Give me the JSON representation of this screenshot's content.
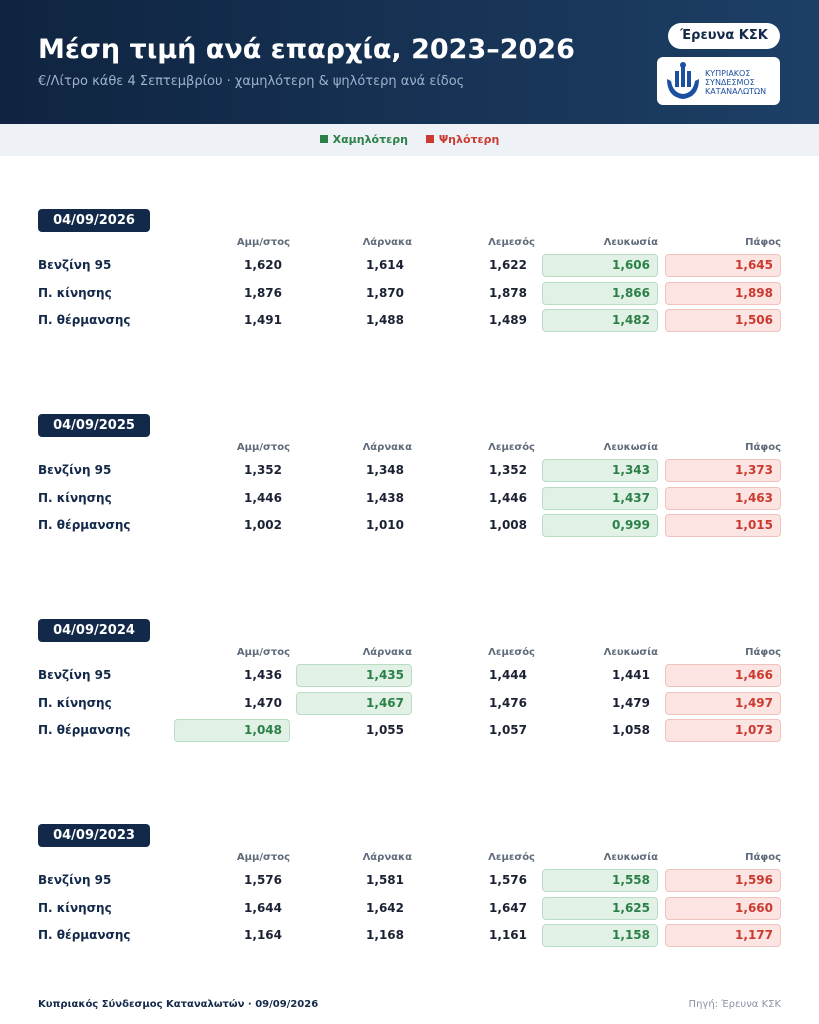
{
  "header": {
    "title": "Μέση τιμή ανά επαρχία, 2023–2026",
    "subtitle": "€/Λίτρο κάθε 4 Σεπτεμβρίου · χαμηλότερη & ψηλότερη ανά είδος",
    "badge": "Έρευνα ΚΣΚ",
    "logo_lines": [
      "ΚΥΠΡΙΑΚΟΣ",
      "ΣΥΝΔΕΣΜΟΣ",
      "ΚΑΤΑΝΑΛΩΤΩΝ"
    ]
  },
  "legend": {
    "low": "Χαμηλότερη",
    "high": "Ψηλότερη"
  },
  "columns": [
    "Αμμ/στος",
    "Λάρνακα",
    "Λεμεσός",
    "Λευκωσία",
    "Πάφος"
  ],
  "sections": [
    {
      "date": "04/09/2026",
      "rows": [
        {
          "label": "Βενζίνη 95",
          "values": [
            "1,620",
            "1,614",
            "1,622",
            "1,606",
            "1,645"
          ],
          "lowest": 3,
          "highest": 4
        },
        {
          "label": "Π. κίνησης",
          "values": [
            "1,876",
            "1,870",
            "1,878",
            "1,866",
            "1,898"
          ],
          "lowest": 3,
          "highest": 4
        },
        {
          "label": "Π. θέρμανσης",
          "values": [
            "1,491",
            "1,488",
            "1,489",
            "1,482",
            "1,506"
          ],
          "lowest": 3,
          "highest": 4
        }
      ]
    },
    {
      "date": "04/09/2025",
      "rows": [
        {
          "label": "Βενζίνη 95",
          "values": [
            "1,352",
            "1,348",
            "1,352",
            "1,343",
            "1,373"
          ],
          "lowest": 3,
          "highest": 4
        },
        {
          "label": "Π. κίνησης",
          "values": [
            "1,446",
            "1,438",
            "1,446",
            "1,437",
            "1,463"
          ],
          "lowest": 3,
          "highest": 4
        },
        {
          "label": "Π. θέρμανσης",
          "values": [
            "1,002",
            "1,010",
            "1,008",
            "0,999",
            "1,015"
          ],
          "lowest": 3,
          "highest": 4
        }
      ]
    },
    {
      "date": "04/09/2024",
      "rows": [
        {
          "label": "Βενζίνη 95",
          "values": [
            "1,436",
            "1,435",
            "1,444",
            "1,441",
            "1,466"
          ],
          "lowest": 1,
          "highest": 4
        },
        {
          "label": "Π. κίνησης",
          "values": [
            "1,470",
            "1,467",
            "1,476",
            "1,479",
            "1,497"
          ],
          "lowest": 1,
          "highest": 4
        },
        {
          "label": "Π. θέρμανσης",
          "values": [
            "1,048",
            "1,055",
            "1,057",
            "1,058",
            "1,073"
          ],
          "lowest": 0,
          "highest": 4
        }
      ]
    },
    {
      "date": "04/09/2023",
      "rows": [
        {
          "label": "Βενζίνη 95",
          "values": [
            "1,576",
            "1,581",
            "1,576",
            "1,558",
            "1,596"
          ],
          "lowest": 3,
          "highest": 4
        },
        {
          "label": "Π. κίνησης",
          "values": [
            "1,644",
            "1,642",
            "1,647",
            "1,625",
            "1,660"
          ],
          "lowest": 3,
          "highest": 4
        },
        {
          "label": "Π. θέρμανσης",
          "values": [
            "1,164",
            "1,168",
            "1,161",
            "1,158",
            "1,177"
          ],
          "lowest": 3,
          "highest": 4
        }
      ]
    }
  ],
  "footer": {
    "left": "Κυπριακός Σύνδεσμος Καταναλωτών · 09/09/2026",
    "right": "Πηγή: Έρευνα ΚΣΚ"
  }
}
